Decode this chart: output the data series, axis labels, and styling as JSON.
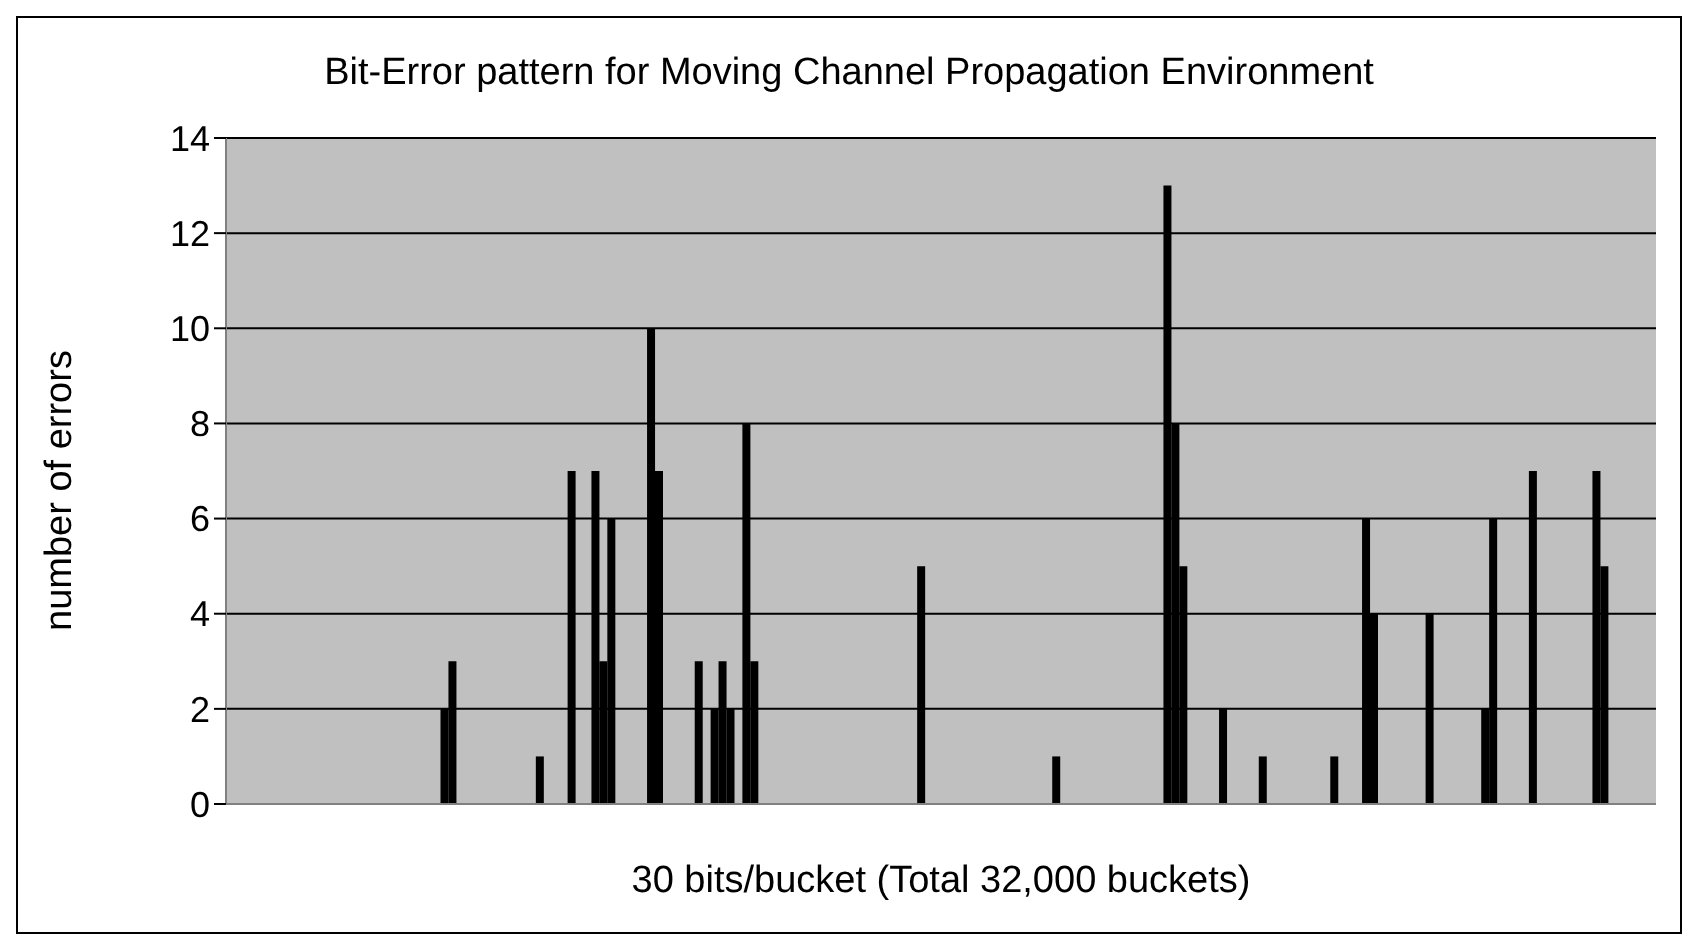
{
  "chart_data": {
    "type": "bar",
    "title": "Bit-Error pattern for Moving Channel Propagation Environment",
    "xlabel": "30 bits/bucket (Total 32,000 buckets)",
    "ylabel": "number of errors",
    "categories": [
      null,
      null,
      null,
      null,
      null,
      null,
      null,
      null,
      null,
      null,
      null,
      null,
      null,
      null,
      null,
      null,
      null,
      null,
      null,
      null,
      null,
      null,
      null,
      null,
      null,
      null,
      null,
      null,
      null,
      null,
      null,
      null,
      null,
      null,
      null,
      null,
      null,
      null,
      null,
      null,
      null,
      null,
      null,
      null,
      null,
      null,
      null,
      null,
      null,
      null,
      null,
      null,
      null,
      null,
      null,
      null,
      null,
      null,
      null,
      null,
      null,
      null,
      null,
      null,
      null,
      null,
      null,
      null,
      null,
      null,
      null,
      null,
      null,
      null,
      null,
      null,
      null,
      null,
      null,
      null,
      null,
      null,
      null,
      null,
      null,
      null,
      null,
      null,
      null,
      null,
      null,
      null,
      null,
      null,
      null,
      null,
      null,
      null,
      null,
      null,
      null,
      null,
      null,
      null,
      null,
      null,
      null,
      null,
      null,
      null,
      null,
      null,
      null,
      null,
      null,
      null,
      null,
      null,
      null,
      null,
      null,
      null,
      null,
      null,
      null,
      null,
      null,
      null,
      null,
      null,
      null,
      null,
      null,
      null,
      null,
      null,
      null,
      null,
      null,
      null,
      null,
      null,
      null,
      null,
      null,
      null,
      null,
      null,
      null,
      null,
      null,
      null,
      null,
      null,
      null,
      null,
      null,
      null,
      null,
      null,
      null,
      null,
      null,
      null,
      null,
      null,
      null,
      null,
      null,
      null,
      null,
      null,
      null,
      null,
      null,
      null,
      null,
      null,
      null,
      null
    ],
    "values": [
      0,
      0,
      0,
      0,
      0,
      0,
      0,
      0,
      0,
      0,
      0,
      0,
      0,
      0,
      0,
      0,
      0,
      0,
      0,
      0,
      0,
      0,
      0,
      0,
      0,
      0,
      0,
      2,
      3,
      0,
      0,
      0,
      0,
      0,
      0,
      0,
      0,
      0,
      0,
      1,
      0,
      0,
      0,
      7,
      0,
      0,
      7,
      3,
      6,
      0,
      0,
      0,
      0,
      10,
      7,
      0,
      0,
      0,
      0,
      3,
      0,
      2,
      3,
      2,
      0,
      8,
      3,
      0,
      0,
      0,
      0,
      0,
      0,
      0,
      0,
      0,
      0,
      0,
      0,
      0,
      0,
      0,
      0,
      0,
      0,
      0,
      0,
      5,
      0,
      0,
      0,
      0,
      0,
      0,
      0,
      0,
      0,
      0,
      0,
      0,
      0,
      0,
      0,
      0,
      1,
      0,
      0,
      0,
      0,
      0,
      0,
      0,
      0,
      0,
      0,
      0,
      0,
      0,
      13,
      8,
      5,
      0,
      0,
      0,
      0,
      2,
      0,
      0,
      0,
      0,
      1,
      0,
      0,
      0,
      0,
      0,
      0,
      0,
      0,
      1,
      0,
      0,
      0,
      6,
      4,
      0,
      0,
      0,
      0,
      0,
      0,
      4,
      0,
      0,
      0,
      0,
      0,
      0,
      2,
      6,
      0,
      0,
      0,
      0,
      7,
      0,
      0,
      0,
      0,
      0,
      0,
      0,
      7,
      5,
      0,
      0,
      0,
      0,
      0,
      0
    ],
    "color": "#000000",
    "ylim": [
      0,
      14
    ],
    "yticks": [
      0,
      2,
      4,
      6,
      8,
      10,
      12,
      14
    ],
    "grid": "y"
  }
}
